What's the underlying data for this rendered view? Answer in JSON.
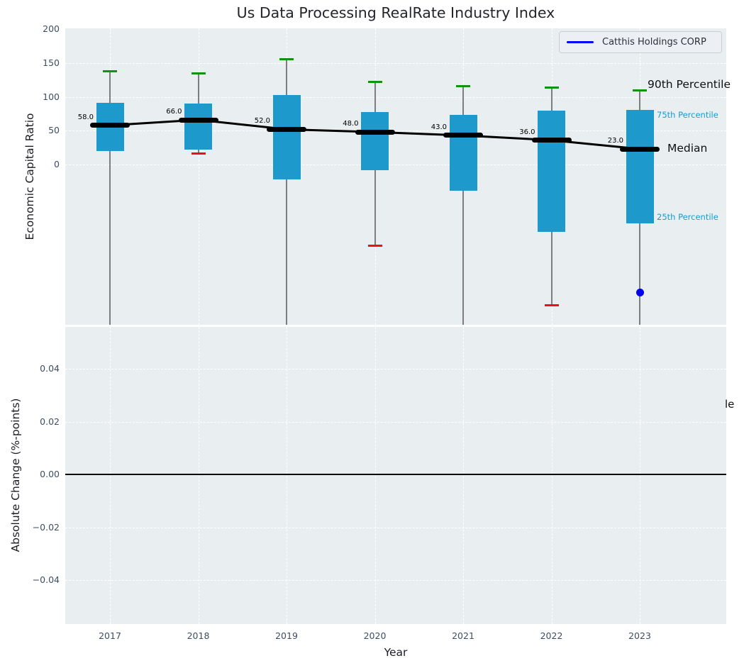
{
  "title": "Us Data Processing RealRate Industry Index",
  "legend": {
    "label": "Catthis Holdings CORP"
  },
  "axes": {
    "top": {
      "ylabel": "Economic Capital Ratio",
      "yticks": [
        {
          "label": "200",
          "value": 200
        },
        {
          "label": "150",
          "value": 150
        },
        {
          "label": "100",
          "value": 100
        },
        {
          "label": "50",
          "value": 50
        },
        {
          "label": "0",
          "value": 0
        }
      ]
    },
    "bottom": {
      "ylabel": "Absolute Change (%-points)",
      "xlabel": "Year",
      "yticks": [
        {
          "label": "0.04",
          "value": 0.04
        },
        {
          "label": "0.02",
          "value": 0.02
        },
        {
          "label": "0.00",
          "value": 0
        },
        {
          "label": "−0.02",
          "value": -0.02
        },
        {
          "label": "−0.04",
          "value": -0.04
        }
      ]
    }
  },
  "annotations": {
    "p90": "90th Percentile",
    "p75": "75th Percentile",
    "median": "Median",
    "p25": "25th Percentile",
    "clipped": "le"
  },
  "colors": {
    "box_fill": "#1e99cc",
    "whisker": "#7e7e7e",
    "cap_high": "#129212",
    "cap_low": "#ee1111",
    "median_line": "#000000",
    "company": "#0000ee",
    "panel_bg": "#e9eef0",
    "grid": "#ffffff",
    "tick_text": "#3d4e63",
    "annotation_cyan": "#1b9bd0"
  },
  "chart_data": {
    "type": "boxplot+line",
    "title": "Us Data Processing RealRate Industry Index",
    "xlabel": "Year",
    "categories": [
      "2017",
      "2018",
      "2019",
      "2020",
      "2021",
      "2022",
      "2023"
    ],
    "legend_position": "upper right",
    "grid": true,
    "top_panel": {
      "ylabel": "Economic Capital Ratio",
      "ylim": [
        -237,
        200
      ],
      "p90": [
        138,
        135,
        156,
        122,
        116,
        114,
        110
      ],
      "q3": [
        91,
        90,
        103,
        78,
        73,
        80,
        81
      ],
      "median": [
        58,
        66,
        52,
        48,
        43,
        36,
        23
      ],
      "median_labels": [
        "58.0",
        "66.0",
        "52.0",
        "48.0",
        "43.0",
        "36.0",
        "23.0"
      ],
      "q1": [
        20,
        22,
        -22,
        -8,
        -39,
        -100,
        -87
      ],
      "p10": [
        null,
        16,
        null,
        -120,
        null,
        -208,
        null
      ],
      "p10_note": "null = whisker clipped below visible axis range",
      "company_series": {
        "name": "Catthis Holdings CORP",
        "points": [
          {
            "category": "2023",
            "value": -189
          }
        ]
      }
    },
    "bottom_panel": {
      "ylabel": "Absolute Change (%-points)",
      "ylim": [
        -0.056,
        0.056
      ],
      "zero_line": 0,
      "series_values": []
    }
  }
}
